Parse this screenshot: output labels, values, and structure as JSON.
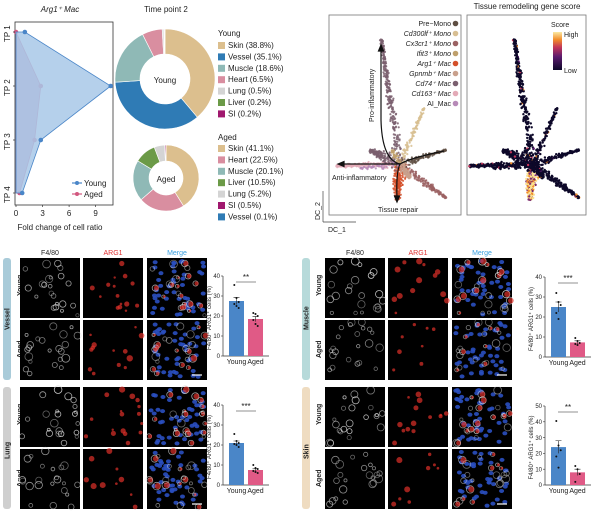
{
  "panel_a": {
    "title": "Arg1⁺ Mac",
    "colors": {
      "young": "#4a86c8",
      "aged": "#d2577f",
      "young_fill": "#a8c8e8",
      "aged_fill": "#c783aa"
    }
  },
  "panel_b": {
    "title": "Time point 2",
    "young_center": "Young",
    "aged_center": "Aged",
    "young_header": "Young",
    "aged_header": "Aged"
  },
  "panel_c": {
    "legend": [
      "Pre−Mono",
      "Cd300lf⁺ Mono",
      "Cx3cr1⁺ Mono",
      "Ifit3⁺ Mono",
      "Arg1⁺ Mac",
      "Gpnmb⁺ Mac",
      "Cd74⁺ Mac",
      "Cd163⁺ Mac",
      "AI_Mac"
    ],
    "legend_colors": [
      "#5e4e42",
      "#d8bf92",
      "#9b6263",
      "#bfa06c",
      "#d4502a",
      "#c9a08c",
      "#7a5f6f",
      "#e3aab7",
      "#b78ab8"
    ],
    "arrows": {
      "up": "Pro-inflammatory",
      "left": "Anti-inflammatory",
      "down": "Tissue repair"
    },
    "xaxis": "DC_1",
    "yaxis": "DC_2"
  },
  "panel_d": {
    "title": "Tissue remodeling gene score",
    "colorbar_title": "Score",
    "high": "High",
    "low": "Low"
  },
  "panel_e": {
    "columns": [
      "F4/80",
      "ARG1",
      "Merge"
    ],
    "column_colors": [
      "#222222",
      "#e03030",
      "#3aa0e0"
    ],
    "rows": [
      "Young",
      "Aged"
    ],
    "tissues": [
      {
        "name": "Vessel",
        "color": "#a9cbd9"
      },
      {
        "name": "Lung",
        "color": "#cfcfcf"
      },
      {
        "name": "Muscle",
        "color": "#b7dada"
      },
      {
        "name": "Skin",
        "color": "#efdcc1"
      }
    ],
    "ylabel": "F4/80⁺ ARG1⁺ cells (%)"
  },
  "chart_data": [
    {
      "type": "line",
      "title": "Arg1⁺ Mac",
      "xlabel": "Fold change of cell ratio",
      "ylabel": "",
      "categories": [
        "TP 1",
        "TP 2",
        "TP 3",
        "TP 4"
      ],
      "xlim": [
        0,
        11
      ],
      "xticks": [
        0,
        3,
        6,
        9
      ],
      "series": [
        {
          "name": "Young",
          "values": [
            1.0,
            10.7,
            2.8,
            0.7
          ]
        },
        {
          "name": "Aged",
          "values": [
            0.0,
            2.8,
            2.1,
            0.4
          ]
        }
      ],
      "legend": "bottom-right"
    },
    {
      "type": "pie",
      "title": "Time point 2",
      "name": "Young",
      "slices": [
        {
          "label": "Skin (38.8%)",
          "value": 38.8,
          "color": "#dcbf8e"
        },
        {
          "label": "Vessel (35.1%)",
          "value": 35.1,
          "color": "#2f7bb5"
        },
        {
          "label": "Muscle (18.6%)",
          "value": 18.6,
          "color": "#8fb9b6"
        },
        {
          "label": "Heart (6.5%)",
          "value": 6.5,
          "color": "#d98ea0"
        },
        {
          "label": "Lung (0.5%)",
          "value": 0.5,
          "color": "#d4d4d4"
        },
        {
          "label": "Liver (0.2%)",
          "value": 0.2,
          "color": "#6b9a47"
        },
        {
          "label": "SI (0.2%)",
          "value": 0.2,
          "color": "#a0186e"
        }
      ]
    },
    {
      "type": "pie",
      "name": "Aged",
      "slices": [
        {
          "label": "Skin (41.1%)",
          "value": 41.1,
          "color": "#dcbf8e"
        },
        {
          "label": "Heart (22.5%)",
          "value": 22.5,
          "color": "#d98ea0"
        },
        {
          "label": "Muscle (20.1%)",
          "value": 20.1,
          "color": "#8fb9b6"
        },
        {
          "label": "Liver (10.5%)",
          "value": 10.5,
          "color": "#6b9a47"
        },
        {
          "label": "Lung (5.2%)",
          "value": 5.2,
          "color": "#d4d4d4"
        },
        {
          "label": "SI (0.5%)",
          "value": 0.5,
          "color": "#a0186e"
        },
        {
          "label": "Vessel (0.1%)",
          "value": 0.1,
          "color": "#2f7bb5"
        }
      ]
    },
    {
      "type": "bar",
      "tissue": "Vessel",
      "categories": [
        "Young",
        "Aged"
      ],
      "values": [
        27.5,
        18.5
      ],
      "sem": [
        1.8,
        1.3
      ],
      "points": [
        [
          35.5,
          29,
          27,
          26,
          25,
          24
        ],
        [
          21.5,
          21,
          20,
          18,
          16,
          15
        ]
      ],
      "ylim": [
        0,
        40
      ],
      "yticks": [
        0,
        10,
        20,
        30,
        40
      ],
      "ylabel": "F4/80⁺ ARG1⁺ cells (%)",
      "significance": "**",
      "colors": [
        "#4a86c8",
        "#e05a86"
      ]
    },
    {
      "type": "bar",
      "tissue": "Lung",
      "categories": [
        "Young",
        "Aged"
      ],
      "values": [
        21,
        7.5
      ],
      "sem": [
        1.0,
        0.6
      ],
      "points": [
        [
          25.5,
          22,
          21,
          20.5,
          20,
          19
        ],
        [
          10,
          8.5,
          8,
          7,
          6.5,
          6
        ]
      ],
      "ylim": [
        0,
        40
      ],
      "yticks": [
        0,
        10,
        20,
        30,
        40
      ],
      "ylabel": "F4/80⁺ ARG1⁺ cells (%)",
      "significance": "***",
      "colors": [
        "#4a86c8",
        "#e05a86"
      ]
    },
    {
      "type": "bar",
      "tissue": "Muscle",
      "categories": [
        "Young",
        "Aged"
      ],
      "values": [
        25,
        7.3
      ],
      "sem": [
        2.5,
        0.8
      ],
      "points": [
        [
          32,
          27.5,
          26,
          22,
          19
        ],
        [
          9.5,
          8,
          7,
          6.5,
          6
        ]
      ],
      "ylim": [
        0,
        40
      ],
      "yticks": [
        0,
        10,
        20,
        30,
        40
      ],
      "ylabel": "F4/80⁺ ARG1⁺ cells (%)",
      "significance": "***",
      "colors": [
        "#4a86c8",
        "#e05a86"
      ]
    },
    {
      "type": "bar",
      "tissue": "Skin",
      "categories": [
        "Young",
        "Aged"
      ],
      "values": [
        24,
        8
      ],
      "sem": [
        4,
        2
      ],
      "points": [
        [
          40.5,
          25,
          22,
          18,
          11
        ],
        [
          12,
          10,
          7,
          2
        ]
      ],
      "ylim": [
        0,
        50
      ],
      "yticks": [
        0,
        10,
        20,
        30,
        40,
        50
      ],
      "ylabel": "F4/80⁺ ARG1⁺ cells (%)",
      "significance": "**",
      "colors": [
        "#4a86c8",
        "#e05a86"
      ]
    }
  ]
}
